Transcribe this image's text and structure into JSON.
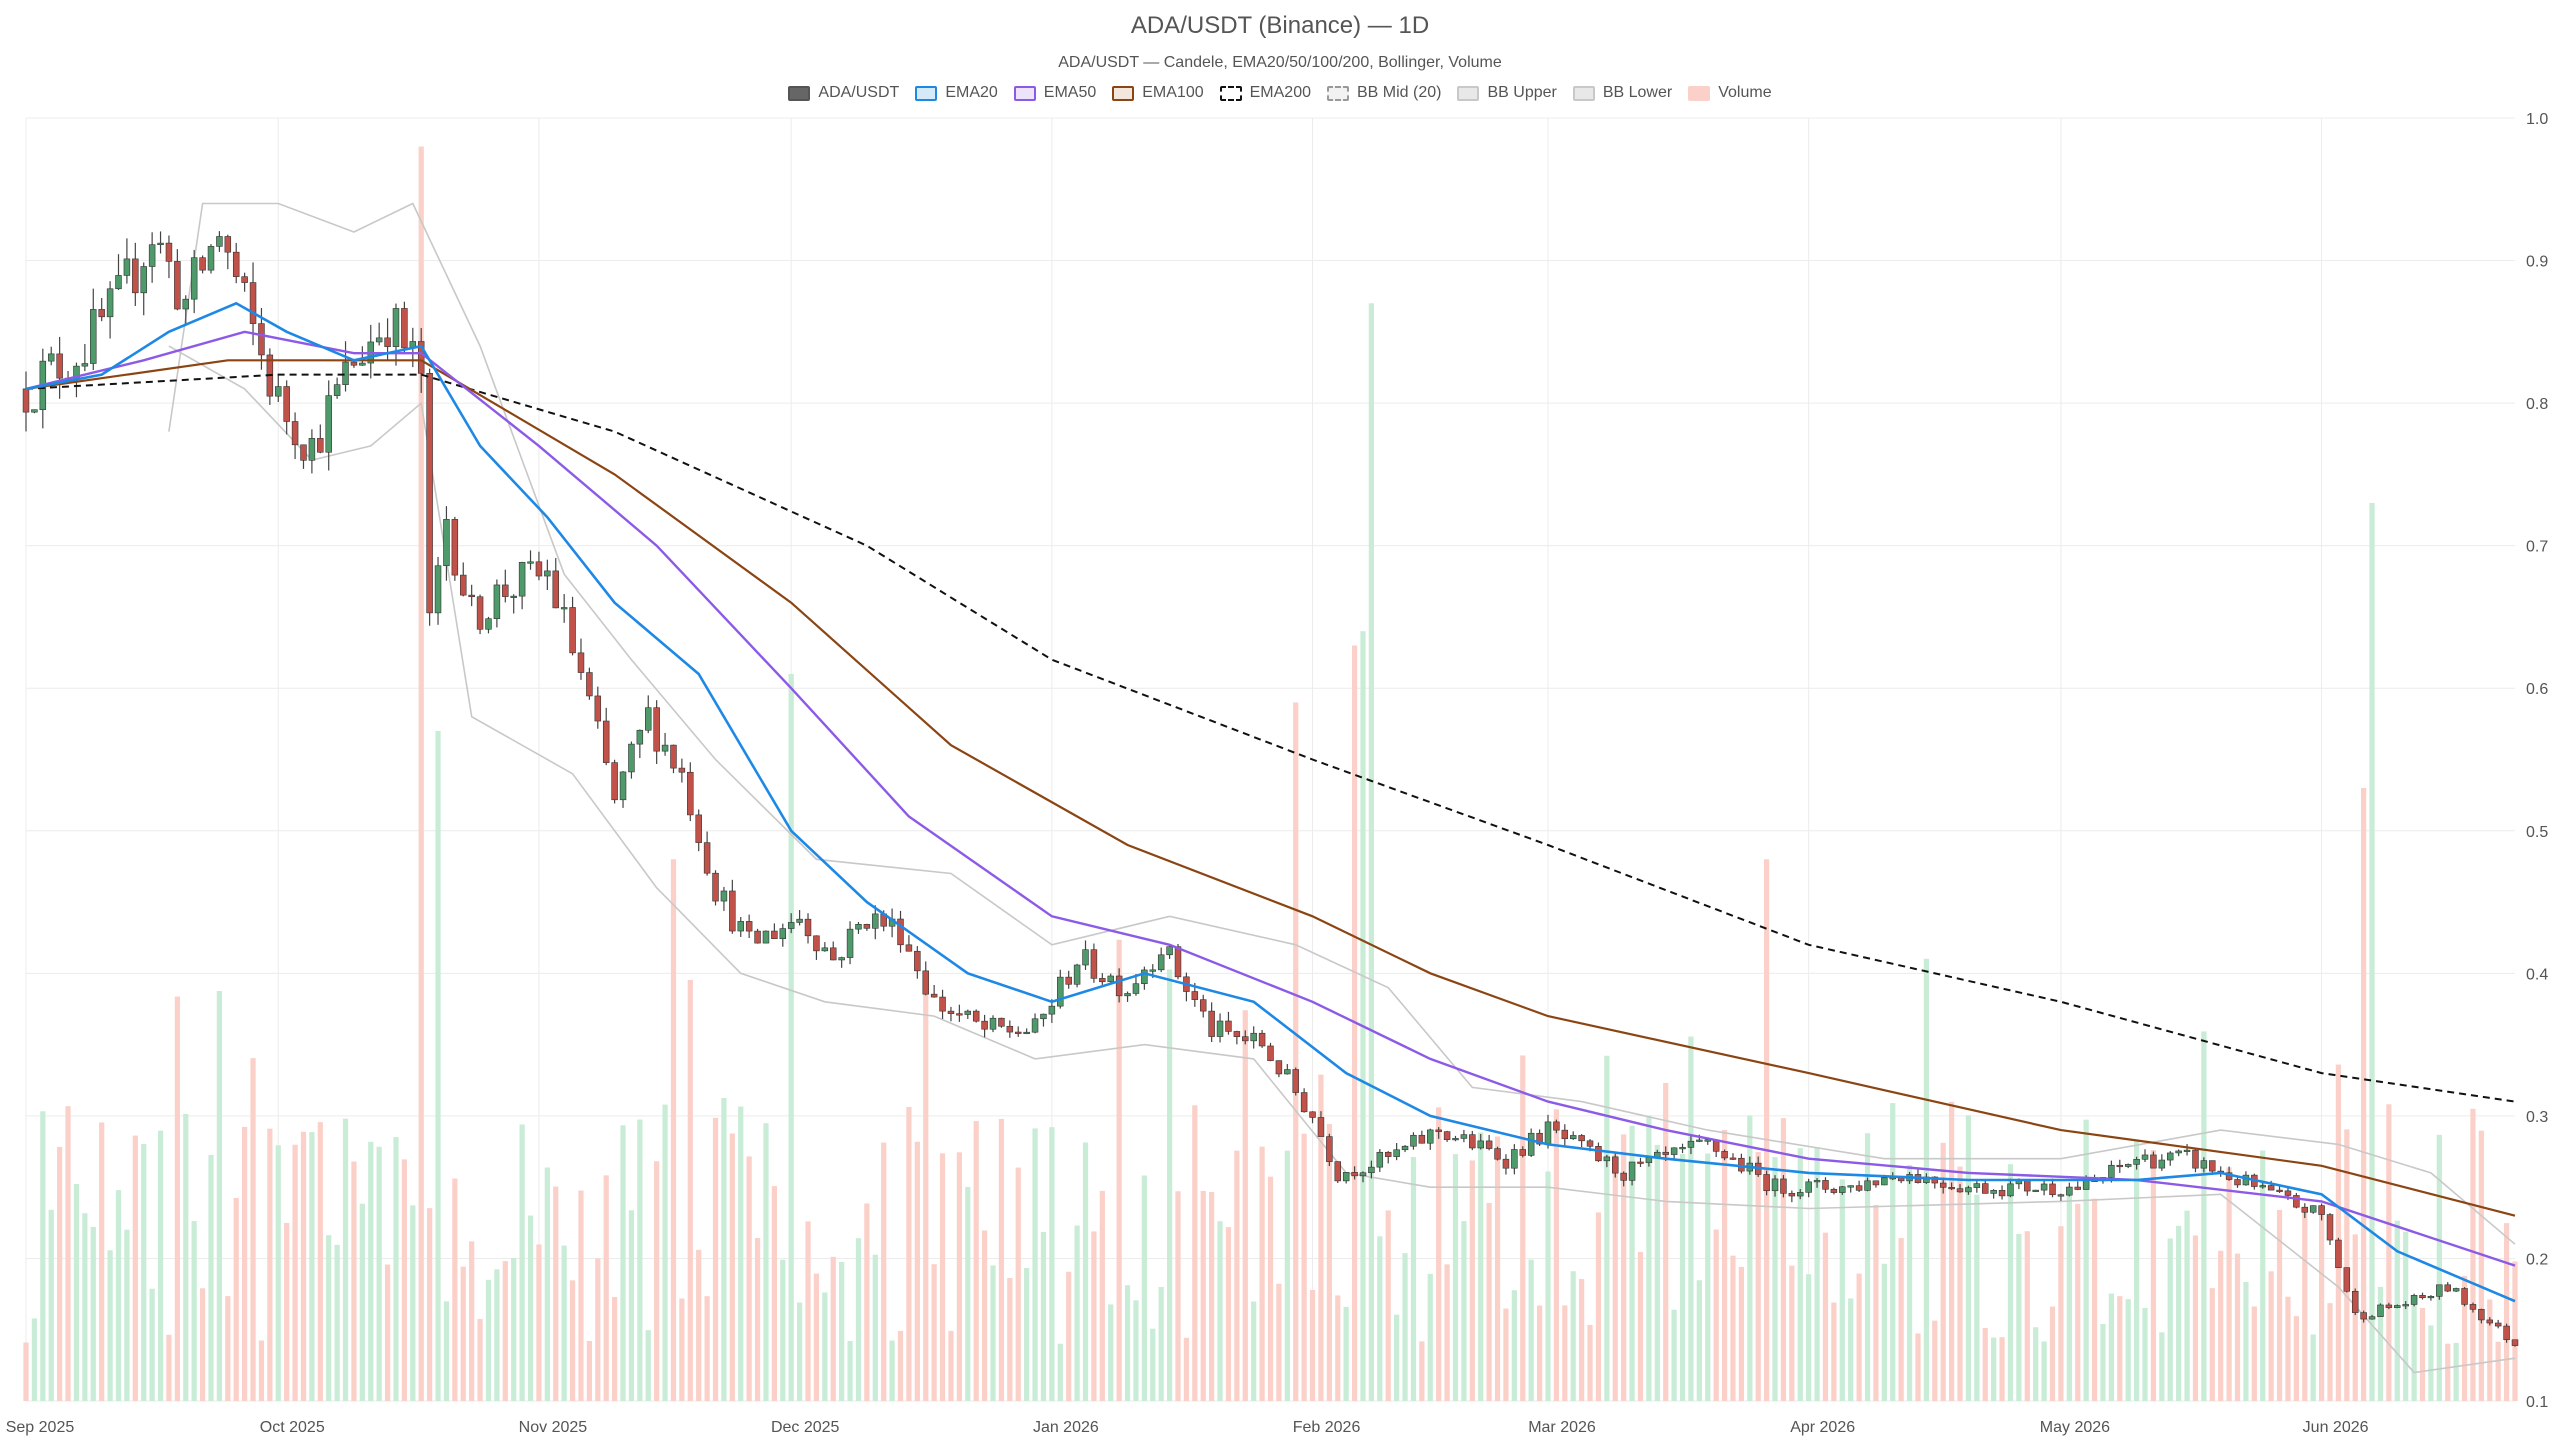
{
  "chart_data": {
    "type": "candlestick",
    "title": "ADA/USDT (Binance) — 1D",
    "subtitle": "ADA/USDT — Candele, EMA20/50/100/200, Bollinger, Volume",
    "legend": [
      {
        "label": "ADA/USDT",
        "fill": "#666666",
        "border": "#555555",
        "dashed": false
      },
      {
        "label": "EMA20",
        "fill": "#d6e9f8",
        "border": "#1e88e5",
        "dashed": false
      },
      {
        "label": "EMA50",
        "fill": "#ece4fb",
        "border": "#8c5ae6",
        "dashed": false
      },
      {
        "label": "EMA100",
        "fill": "#f3e6dc",
        "border": "#8b4513",
        "dashed": false
      },
      {
        "label": "EMA200",
        "fill": "#ffffff",
        "border": "#111111",
        "dashed": true
      },
      {
        "label": "BB Mid (20)",
        "fill": "#f2f2f2",
        "border": "#999999",
        "dashed": true
      },
      {
        "label": "BB Upper",
        "fill": "#e8e8e8",
        "border": "#c8c8c8",
        "dashed": false
      },
      {
        "label": "BB Lower",
        "fill": "#e8e8e8",
        "border": "#c8c8c8",
        "dashed": false
      },
      {
        "label": "Volume",
        "fill": "#fbd0c8",
        "border": "#fbd0c8",
        "dashed": false
      }
    ],
    "x_axis": {
      "start": "2025-09-01",
      "end": "2026-06-24",
      "ticks": [
        {
          "label": "Sep 2025",
          "date": "2025-09-01"
        },
        {
          "label": "Oct 2025",
          "date": "2025-10-01"
        },
        {
          "label": "Nov 2025",
          "date": "2025-11-01"
        },
        {
          "label": "Dec 2025",
          "date": "2025-12-01"
        },
        {
          "label": "Jan 2026",
          "date": "2026-01-01"
        },
        {
          "label": "Feb 2026",
          "date": "2026-02-01"
        },
        {
          "label": "Mar 2026",
          "date": "2026-03-01"
        },
        {
          "label": "Apr 2026",
          "date": "2026-04-01"
        },
        {
          "label": "May 2026",
          "date": "2026-05-01"
        },
        {
          "label": "Jun 2026",
          "date": "2026-06-01"
        }
      ]
    },
    "y_axis": {
      "min": 0.1,
      "max": 1.0,
      "ticks": [
        "1.0",
        "0.9",
        "0.8",
        "0.7",
        "0.6",
        "0.5",
        "0.4",
        "0.3",
        "0.2",
        "0.1"
      ],
      "position": "right"
    },
    "grid": true,
    "colors": {
      "up": "#4e9a6a",
      "down": "#c1524a",
      "vol_up": "#c8ecd6",
      "vol_down": "#fbd0c8",
      "wick": "#444444"
    },
    "price_path": [
      [
        "2025-09-01",
        0.81
      ],
      [
        "2025-09-08",
        0.84
      ],
      [
        "2025-09-12",
        0.87
      ],
      [
        "2025-09-16",
        0.92
      ],
      [
        "2025-09-20",
        0.87
      ],
      [
        "2025-09-24",
        0.92
      ],
      [
        "2025-09-28",
        0.85
      ],
      [
        "2025-10-01",
        0.8
      ],
      [
        "2025-10-05",
        0.77
      ],
      [
        "2025-10-10",
        0.83
      ],
      [
        "2025-10-14",
        0.86
      ],
      [
        "2025-10-18",
        0.82
      ],
      [
        "2025-10-19",
        0.64
      ],
      [
        "2025-10-21",
        0.72
      ],
      [
        "2025-10-24",
        0.65
      ],
      [
        "2025-10-28",
        0.67
      ],
      [
        "2025-11-02",
        0.68
      ],
      [
        "2025-11-06",
        0.61
      ],
      [
        "2025-11-10",
        0.52
      ],
      [
        "2025-11-14",
        0.58
      ],
      [
        "2025-11-18",
        0.54
      ],
      [
        "2025-11-22",
        0.46
      ],
      [
        "2025-11-26",
        0.42
      ],
      [
        "2025-12-02",
        0.44
      ],
      [
        "2025-12-06",
        0.41
      ],
      [
        "2025-12-10",
        0.44
      ],
      [
        "2025-12-14",
        0.43
      ],
      [
        "2025-12-18",
        0.38
      ],
      [
        "2025-12-24",
        0.36
      ],
      [
        "2025-12-30",
        0.36
      ],
      [
        "2026-01-04",
        0.41
      ],
      [
        "2026-01-10",
        0.39
      ],
      [
        "2026-01-14",
        0.42
      ],
      [
        "2026-01-20",
        0.36
      ],
      [
        "2026-01-26",
        0.35
      ],
      [
        "2026-02-01",
        0.3
      ],
      [
        "2026-02-04",
        0.26
      ],
      [
        "2026-02-10",
        0.27
      ],
      [
        "2026-02-16",
        0.29
      ],
      [
        "2026-02-24",
        0.27
      ],
      [
        "2026-03-01",
        0.29
      ],
      [
        "2026-03-10",
        0.26
      ],
      [
        "2026-03-20",
        0.28
      ],
      [
        "2026-03-28",
        0.25
      ],
      [
        "2026-04-06",
        0.25
      ],
      [
        "2026-04-12",
        0.26
      ],
      [
        "2026-04-20",
        0.25
      ],
      [
        "2026-05-04",
        0.25
      ],
      [
        "2026-05-10",
        0.27
      ],
      [
        "2026-05-16",
        0.27
      ],
      [
        "2026-05-24",
        0.25
      ],
      [
        "2026-06-01",
        0.23
      ],
      [
        "2026-06-05",
        0.16
      ],
      [
        "2026-06-12",
        0.17
      ],
      [
        "2026-06-16",
        0.18
      ],
      [
        "2026-06-24",
        0.14
      ]
    ],
    "ema20_path": [
      [
        "2025-09-01",
        0.81
      ],
      [
        "2025-09-10",
        0.82
      ],
      [
        "2025-09-18",
        0.85
      ],
      [
        "2025-09-26",
        0.87
      ],
      [
        "2025-10-02",
        0.85
      ],
      [
        "2025-10-10",
        0.83
      ],
      [
        "2025-10-18",
        0.84
      ],
      [
        "2025-10-25",
        0.77
      ],
      [
        "2025-11-02",
        0.72
      ],
      [
        "2025-11-10",
        0.66
      ],
      [
        "2025-11-20",
        0.61
      ],
      [
        "2025-12-01",
        0.5
      ],
      [
        "2025-12-10",
        0.45
      ],
      [
        "2025-12-22",
        0.4
      ],
      [
        "2026-01-01",
        0.38
      ],
      [
        "2026-01-12",
        0.4
      ],
      [
        "2026-01-25",
        0.38
      ],
      [
        "2026-02-05",
        0.33
      ],
      [
        "2026-02-15",
        0.3
      ],
      [
        "2026-03-01",
        0.28
      ],
      [
        "2026-03-15",
        0.27
      ],
      [
        "2026-04-01",
        0.26
      ],
      [
        "2026-04-20",
        0.255
      ],
      [
        "2026-05-10",
        0.255
      ],
      [
        "2026-05-20",
        0.26
      ],
      [
        "2026-06-01",
        0.245
      ],
      [
        "2026-06-10",
        0.205
      ],
      [
        "2026-06-24",
        0.17
      ]
    ],
    "ema50_path": [
      [
        "2025-09-01",
        0.81
      ],
      [
        "2025-09-15",
        0.83
      ],
      [
        "2025-09-27",
        0.85
      ],
      [
        "2025-10-10",
        0.835
      ],
      [
        "2025-10-18",
        0.835
      ],
      [
        "2025-11-01",
        0.77
      ],
      [
        "2025-11-15",
        0.7
      ],
      [
        "2025-12-01",
        0.6
      ],
      [
        "2025-12-15",
        0.51
      ],
      [
        "2026-01-01",
        0.44
      ],
      [
        "2026-01-15",
        0.42
      ],
      [
        "2026-02-01",
        0.38
      ],
      [
        "2026-02-15",
        0.34
      ],
      [
        "2026-03-01",
        0.31
      ],
      [
        "2026-03-15",
        0.29
      ],
      [
        "2026-04-01",
        0.27
      ],
      [
        "2026-04-20",
        0.26
      ],
      [
        "2026-05-10",
        0.255
      ],
      [
        "2026-06-01",
        0.24
      ],
      [
        "2026-06-24",
        0.195
      ]
    ],
    "ema100_path": [
      [
        "2025-09-01",
        0.81
      ],
      [
        "2025-09-25",
        0.83
      ],
      [
        "2025-10-18",
        0.83
      ],
      [
        "2025-11-10",
        0.75
      ],
      [
        "2025-12-01",
        0.66
      ],
      [
        "2025-12-20",
        0.56
      ],
      [
        "2026-01-10",
        0.49
      ],
      [
        "2026-02-01",
        0.44
      ],
      [
        "2026-02-15",
        0.4
      ],
      [
        "2026-03-01",
        0.37
      ],
      [
        "2026-04-01",
        0.33
      ],
      [
        "2026-05-01",
        0.29
      ],
      [
        "2026-06-01",
        0.265
      ],
      [
        "2026-06-24",
        0.23
      ]
    ],
    "ema200_path": [
      [
        "2025-09-01",
        0.81
      ],
      [
        "2025-10-01",
        0.82
      ],
      [
        "2025-10-18",
        0.82
      ],
      [
        "2025-11-10",
        0.78
      ],
      [
        "2025-12-10",
        0.7
      ],
      [
        "2026-01-01",
        0.62
      ],
      [
        "2026-02-01",
        0.55
      ],
      [
        "2026-03-01",
        0.49
      ],
      [
        "2026-04-01",
        0.42
      ],
      [
        "2026-05-01",
        0.38
      ],
      [
        "2026-06-01",
        0.33
      ],
      [
        "2026-06-24",
        0.31
      ]
    ],
    "bb_upper_path": [
      [
        "2025-09-18",
        0.78
      ],
      [
        "2025-09-22",
        0.94
      ],
      [
        "2025-10-01",
        0.94
      ],
      [
        "2025-10-10",
        0.92
      ],
      [
        "2025-10-17",
        0.94
      ],
      [
        "2025-10-25",
        0.84
      ],
      [
        "2025-11-04",
        0.68
      ],
      [
        "2025-11-12",
        0.62
      ],
      [
        "2025-11-22",
        0.55
      ],
      [
        "2025-12-04",
        0.48
      ],
      [
        "2025-12-20",
        0.47
      ],
      [
        "2026-01-01",
        0.42
      ],
      [
        "2026-01-15",
        0.44
      ],
      [
        "2026-01-30",
        0.42
      ],
      [
        "2026-02-10",
        0.39
      ],
      [
        "2026-02-20",
        0.32
      ],
      [
        "2026-03-05",
        0.31
      ],
      [
        "2026-03-20",
        0.29
      ],
      [
        "2026-04-10",
        0.27
      ],
      [
        "2026-05-01",
        0.27
      ],
      [
        "2026-05-20",
        0.29
      ],
      [
        "2026-06-03",
        0.28
      ],
      [
        "2026-06-14",
        0.26
      ],
      [
        "2026-06-24",
        0.21
      ]
    ],
    "bb_lower_path": [
      [
        "2025-09-18",
        0.84
      ],
      [
        "2025-09-27",
        0.81
      ],
      [
        "2025-10-05",
        0.76
      ],
      [
        "2025-10-12",
        0.77
      ],
      [
        "2025-10-18",
        0.8
      ],
      [
        "2025-10-24",
        0.58
      ],
      [
        "2025-11-05",
        0.54
      ],
      [
        "2025-11-15",
        0.46
      ],
      [
        "2025-11-25",
        0.4
      ],
      [
        "2025-12-05",
        0.38
      ],
      [
        "2025-12-18",
        0.37
      ],
      [
        "2025-12-30",
        0.34
      ],
      [
        "2026-01-12",
        0.35
      ],
      [
        "2026-01-25",
        0.34
      ],
      [
        "2026-02-05",
        0.26
      ],
      [
        "2026-02-15",
        0.25
      ],
      [
        "2026-03-01",
        0.25
      ],
      [
        "2026-03-15",
        0.24
      ],
      [
        "2026-04-01",
        0.235
      ],
      [
        "2026-05-01",
        0.24
      ],
      [
        "2026-05-20",
        0.245
      ],
      [
        "2026-06-03",
        0.18
      ],
      [
        "2026-06-12",
        0.12
      ],
      [
        "2026-06-24",
        0.13
      ]
    ],
    "volume_spikes": [
      [
        "2025-10-18",
        0.98
      ],
      [
        "2025-10-20",
        0.57
      ],
      [
        "2025-11-17",
        0.48
      ],
      [
        "2025-12-01",
        0.61
      ],
      [
        "2026-01-30",
        0.59
      ],
      [
        "2026-02-06",
        0.63
      ],
      [
        "2026-02-07",
        0.64
      ],
      [
        "2026-02-08",
        0.87
      ],
      [
        "2026-03-27",
        0.48
      ],
      [
        "2026-06-06",
        0.53
      ],
      [
        "2026-06-07",
        0.73
      ]
    ]
  }
}
